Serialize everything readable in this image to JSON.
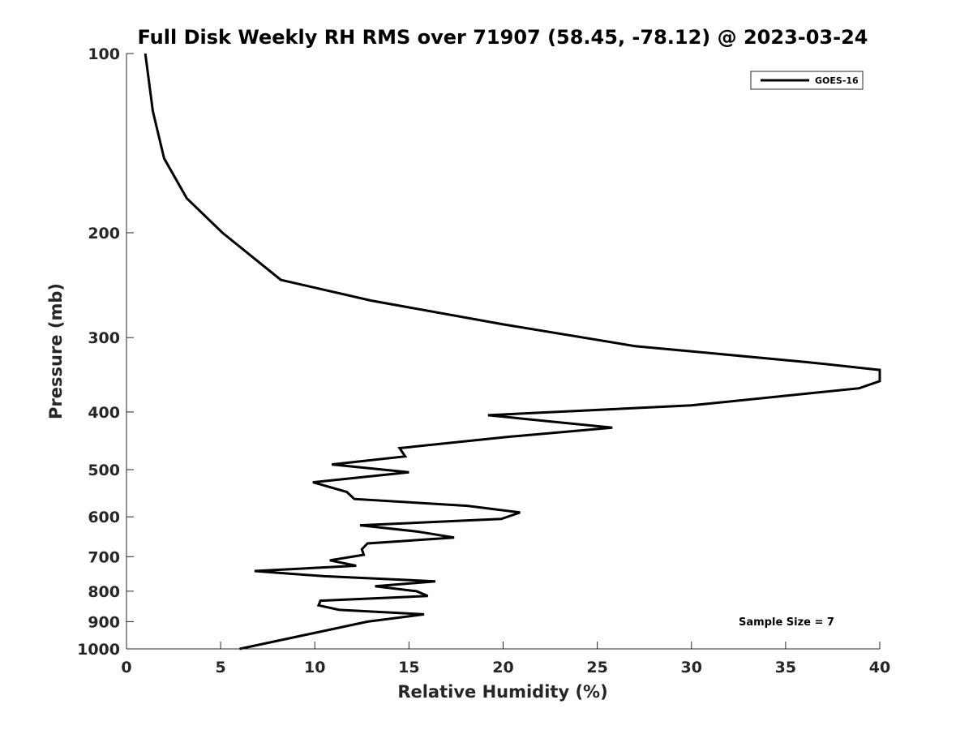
{
  "chart_data": {
    "type": "line",
    "title": "Full Disk Weekly RH RMS over 71907 (58.45, -78.12) @ 2023-03-24",
    "xlabel": "Relative Humidity (%)",
    "ylabel": "Pressure (mb)",
    "xlim": [
      0,
      40
    ],
    "ylim": [
      100,
      1000
    ],
    "y_scale": "log",
    "y_reversed": true,
    "xticks": [
      0,
      5,
      10,
      15,
      20,
      25,
      30,
      35,
      40
    ],
    "yticks": [
      100,
      200,
      300,
      400,
      500,
      600,
      700,
      800,
      900,
      1000
    ],
    "grid": false,
    "legend_position": "top-right",
    "series": [
      {
        "name": "GOES-16",
        "color": "#000000",
        "points": [
          [
            1.0,
            100
          ],
          [
            1.4,
            125
          ],
          [
            2.0,
            150
          ],
          [
            3.2,
            175
          ],
          [
            5.1,
            200
          ],
          [
            8.2,
            240
          ],
          [
            13.0,
            260
          ],
          [
            20.0,
            285
          ],
          [
            27.0,
            310
          ],
          [
            36.2,
            330
          ],
          [
            40.0,
            340
          ],
          [
            40.0,
            355
          ],
          [
            38.9,
            365
          ],
          [
            30.0,
            390
          ],
          [
            19.2,
            405
          ],
          [
            25.8,
            425
          ],
          [
            20.4,
            440
          ],
          [
            14.5,
            460
          ],
          [
            14.8,
            475
          ],
          [
            10.9,
            490
          ],
          [
            15.0,
            505
          ],
          [
            9.9,
            525
          ],
          [
            11.7,
            545
          ],
          [
            12.1,
            560
          ],
          [
            18.1,
            575
          ],
          [
            20.9,
            590
          ],
          [
            19.9,
            605
          ],
          [
            12.4,
            620
          ],
          [
            15.4,
            635
          ],
          [
            17.4,
            650
          ],
          [
            12.8,
            665
          ],
          [
            12.5,
            680
          ],
          [
            12.6,
            695
          ],
          [
            10.8,
            710
          ],
          [
            12.2,
            725
          ],
          [
            6.8,
            740
          ],
          [
            10.5,
            755
          ],
          [
            16.4,
            770
          ],
          [
            13.2,
            785
          ],
          [
            15.4,
            800
          ],
          [
            16.0,
            815
          ],
          [
            10.3,
            830
          ],
          [
            10.2,
            845
          ],
          [
            11.3,
            860
          ],
          [
            15.8,
            875
          ],
          [
            12.8,
            900
          ],
          [
            6.0,
            1000
          ]
        ]
      }
    ],
    "annotations": [
      {
        "text": "Sample Size = 7",
        "x": 35.5,
        "y": 900
      }
    ]
  }
}
